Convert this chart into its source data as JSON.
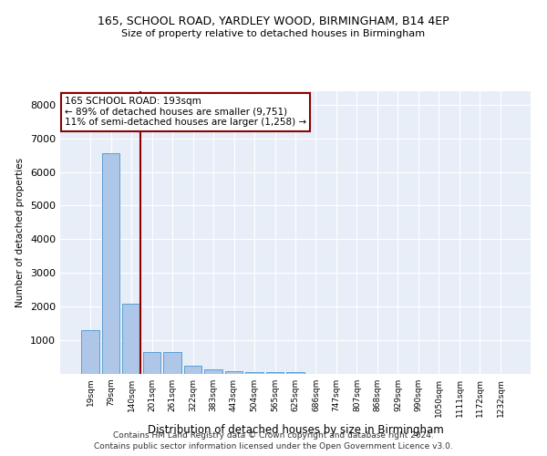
{
  "title_line1": "165, SCHOOL ROAD, YARDLEY WOOD, BIRMINGHAM, B14 4EP",
  "title_line2": "Size of property relative to detached houses in Birmingham",
  "xlabel": "Distribution of detached houses by size in Birmingham",
  "ylabel": "Number of detached properties",
  "categories": [
    "19sqm",
    "79sqm",
    "140sqm",
    "201sqm",
    "261sqm",
    "322sqm",
    "383sqm",
    "443sqm",
    "504sqm",
    "565sqm",
    "625sqm",
    "686sqm",
    "747sqm",
    "807sqm",
    "868sqm",
    "929sqm",
    "990sqm",
    "1050sqm",
    "1111sqm",
    "1172sqm",
    "1232sqm"
  ],
  "values": [
    1300,
    6550,
    2080,
    650,
    650,
    250,
    130,
    90,
    55,
    55,
    55,
    0,
    0,
    0,
    0,
    0,
    0,
    0,
    0,
    0,
    0
  ],
  "bar_color": "#aec6e8",
  "bar_edge_color": "#5a9fd4",
  "vline_color": "#8b0000",
  "vline_x": 2.425,
  "annotation_line1": "165 SCHOOL ROAD: 193sqm",
  "annotation_line2": "← 89% of detached houses are smaller (9,751)",
  "annotation_line3": "11% of semi-detached houses are larger (1,258) →",
  "annotation_box_color": "white",
  "annotation_box_edge_color": "#8b0000",
  "ylim": [
    0,
    8400
  ],
  "yticks": [
    0,
    1000,
    2000,
    3000,
    4000,
    5000,
    6000,
    7000,
    8000
  ],
  "background_color": "#e8eef8",
  "grid_color": "white",
  "footer_line1": "Contains HM Land Registry data © Crown copyright and database right 2024.",
  "footer_line2": "Contains public sector information licensed under the Open Government Licence v3.0."
}
